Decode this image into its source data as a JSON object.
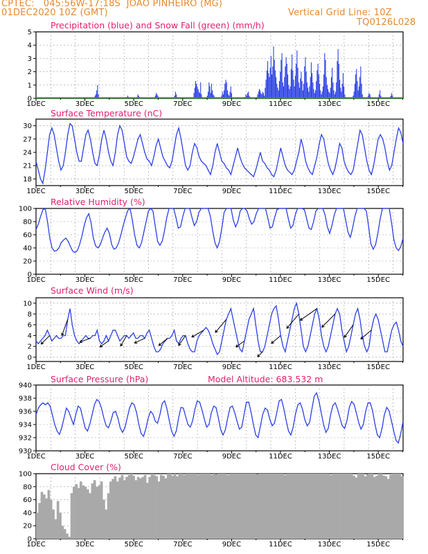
{
  "header": {
    "line1": "CPTEC:   045:56W-17:18S  JOAO PINHEIRO (MG)",
    "line2_left": "01DEC2020 10Z (GMT)",
    "line2_right": "Vertical Grid Line: 10Z",
    "code": "TQ0126L028"
  },
  "colors": {
    "accent": "#e58a2e",
    "title": "#e0206e",
    "line": "#2a3fe6",
    "snow": "#1aa51a",
    "cloud": "#a9a9a9"
  },
  "chart_data": [
    {
      "id": "precip",
      "type": "bar",
      "title": "Precipitation (blue) and Snow Fall (green) (mm/h)",
      "xlabels": [
        "1DEC",
        "3DEC",
        "5DEC",
        "7DEC",
        "9DEC",
        "11DEC",
        "13DEC",
        "15DEC"
      ],
      "yticks": [
        0,
        1,
        2,
        3,
        4,
        5
      ],
      "ylim": [
        0,
        5
      ],
      "snow_values": [
        0
      ],
      "values": [
        0,
        0,
        0,
        0,
        0,
        0,
        0,
        0,
        0,
        0,
        0,
        0,
        0,
        0,
        0,
        0,
        0,
        0,
        0,
        0,
        0,
        0,
        0,
        0,
        0,
        0,
        0,
        0,
        0,
        0,
        0,
        0,
        0,
        0,
        0,
        0,
        0,
        0,
        0,
        0,
        0,
        0,
        0,
        0,
        0,
        0,
        0,
        0,
        0,
        0,
        0,
        0,
        0,
        0,
        0,
        0,
        0,
        0,
        0,
        0,
        0,
        0,
        0,
        0,
        0,
        0,
        0,
        0,
        0,
        0,
        0.2,
        0.3,
        0.6,
        1.0,
        0.3,
        0,
        0,
        0,
        0,
        0,
        0,
        0,
        0,
        0,
        0,
        0,
        0,
        0,
        0,
        0,
        0,
        0,
        0,
        0,
        0,
        0,
        0,
        0,
        0,
        0,
        0,
        0,
        0,
        0,
        0,
        0,
        0,
        0,
        0.1,
        0.2,
        0.1,
        0,
        0,
        0,
        0,
        0,
        0,
        0,
        0,
        0,
        0.1,
        0.3,
        0.2,
        0.1,
        0,
        0,
        0,
        0,
        0,
        0,
        0,
        0,
        0,
        0,
        0,
        0,
        0,
        0,
        0,
        0,
        0,
        0,
        0.2,
        0.4,
        0.3,
        0.2,
        0,
        0,
        0,
        0,
        0,
        0,
        0,
        0,
        0,
        0,
        0,
        0,
        0,
        0,
        0,
        0,
        0,
        0,
        0,
        0.2,
        0.5,
        0.3,
        0.1,
        0,
        0,
        0,
        0,
        0,
        0,
        0,
        0,
        0,
        0,
        0,
        0,
        0,
        0,
        0,
        0,
        0,
        0,
        0,
        0.4,
        0.8,
        1.3,
        1.1,
        0.9,
        0.7,
        0.5,
        0.4,
        1.2,
        0.3,
        0,
        0,
        0,
        0,
        0,
        0,
        0.2,
        0.5,
        1.2,
        0.9,
        0.4,
        1.1,
        0.6,
        0.3,
        0.2,
        0,
        0,
        0,
        0,
        0,
        0,
        0,
        0,
        0.2,
        0.5,
        0.3,
        0.6,
        1.1,
        1.4,
        1.2,
        0.6,
        0.3,
        0.2,
        0.5,
        0.9,
        0.4,
        0,
        0,
        0,
        0,
        0,
        0,
        0,
        0,
        0,
        0,
        0,
        0,
        0,
        0,
        0,
        0.1,
        0.3,
        0.2,
        0.4,
        0.5,
        0.2,
        0.1,
        0,
        0,
        0,
        0,
        0,
        0,
        0,
        0.1,
        0.3,
        0.5,
        0.7,
        0.6,
        0.4,
        0.3,
        0.5,
        0.4,
        0.2,
        0.8,
        1.4,
        2.1,
        2.8,
        1.9,
        1.6,
        2.3,
        3.2,
        1.8,
        2.4,
        3.9,
        2.9,
        2.1,
        1.6,
        1.1,
        0.8,
        0.6,
        1.3,
        2.0,
        2.9,
        3.4,
        1.2,
        0.9,
        1.6,
        2.4,
        3.1,
        2.6,
        1.8,
        1.0,
        0.7,
        0.9,
        2.2,
        3.3,
        2.1,
        1.4,
        0.9,
        1.7,
        2.6,
        3.6,
        2.3,
        1.2,
        0.8,
        1.5,
        2.0,
        1.3,
        0.6,
        1.1,
        2.4,
        3.1,
        2.0,
        1.2,
        0.8,
        0.5,
        0.9,
        1.6,
        2.7,
        1.9,
        1.2,
        0.7,
        0.4,
        0.6,
        1.3,
        2.1,
        2.6,
        1.8,
        1.1,
        0.6,
        0.3,
        0.5,
        0.9,
        1.8,
        3.4,
        2.9,
        1.6,
        1.0,
        0.7,
        0.5,
        0.4,
        0.8,
        1.6,
        2.3,
        1.2,
        0.6,
        0.3,
        0.5,
        1.2,
        2.8,
        3.7,
        2.6,
        1.4,
        0.8,
        0.5,
        1.1,
        1.9,
        0.9,
        0.3,
        0.1,
        0,
        0,
        0,
        0,
        0,
        0,
        0,
        0,
        0.2,
        0.5,
        1.1,
        1.8,
        2.2,
        1.3,
        0.6,
        0.9,
        1.6,
        2.4,
        1.1,
        0.3,
        0,
        0,
        0,
        0,
        0,
        0,
        0.2,
        0.4,
        0.3,
        0.1,
        0,
        0,
        0,
        0,
        0,
        0,
        0,
        0,
        0,
        0.3,
        0.6,
        0.2,
        0,
        0,
        0,
        0,
        0,
        0,
        0,
        0,
        0,
        0,
        0.1,
        0.2,
        0.4,
        0.2,
        0,
        0,
        0,
        0,
        0,
        0,
        0,
        0,
        0,
        0,
        0,
        0
      ]
    },
    {
      "id": "temp",
      "type": "line",
      "title": "Surface Temperature (nC)",
      "xlabels": [
        "1DEC",
        "3DEC",
        "5DEC",
        "7DEC",
        "9DEC",
        "11DEC",
        "13DEC",
        "15DEC"
      ],
      "yticks": [
        18,
        21,
        24,
        27,
        30
      ],
      "ylim": [
        16.5,
        31.5
      ],
      "values": [
        22,
        20,
        18,
        17,
        20,
        24,
        28,
        29.5,
        28,
        25,
        22,
        20,
        21,
        24,
        28,
        30.5,
        30,
        27,
        24,
        22,
        22,
        25,
        28,
        29,
        27,
        24,
        21.5,
        21,
        23.5,
        27,
        29,
        27,
        24,
        22,
        21,
        24,
        28,
        30,
        29,
        26,
        23,
        22,
        21.5,
        23,
        25,
        27,
        28,
        26,
        24,
        22.5,
        22,
        21,
        23,
        25.5,
        27,
        25,
        23,
        22,
        21,
        20.5,
        22,
        25,
        28,
        29.5,
        27,
        24,
        21,
        20,
        21,
        24,
        26,
        25,
        23,
        22,
        21.5,
        21,
        20,
        19,
        21,
        24,
        26,
        24,
        22,
        21.5,
        20.5,
        20,
        19,
        21,
        23,
        25,
        23,
        21.5,
        20.5,
        20,
        19.5,
        19,
        18.5,
        20,
        22,
        24,
        22,
        21.5,
        20.5,
        20,
        19,
        18.5,
        20,
        22.5,
        25,
        23,
        21,
        20,
        19.5,
        19,
        20,
        22,
        24,
        27,
        25,
        22,
        20.5,
        19.5,
        19,
        21,
        23,
        26,
        28,
        27,
        24,
        21.5,
        20,
        19,
        20.5,
        23,
        26,
        25,
        22,
        20.5,
        19.5,
        19,
        20,
        23,
        26,
        29,
        28,
        25,
        22,
        20,
        19,
        21,
        24,
        27,
        28,
        27,
        25,
        22,
        20,
        21,
        24,
        27,
        29.5,
        28.5,
        26
      ]
    },
    {
      "id": "rh",
      "type": "line",
      "title": "Relative Humidity (%)",
      "xlabels": [
        "1DEC",
        "3DEC",
        "5DEC",
        "7DEC",
        "9DEC",
        "11DEC",
        "13DEC",
        "15DEC"
      ],
      "yticks": [
        0,
        20,
        40,
        60,
        80,
        100
      ],
      "ylim": [
        0,
        100
      ],
      "values": [
        68,
        76,
        88,
        98,
        100,
        80,
        55,
        40,
        35,
        36,
        40,
        48,
        52,
        55,
        50,
        42,
        35,
        33,
        36,
        45,
        58,
        74,
        86,
        92,
        78,
        55,
        43,
        40,
        45,
        55,
        64,
        70,
        62,
        45,
        38,
        40,
        48,
        60,
        74,
        86,
        97,
        100,
        82,
        60,
        44,
        40,
        48,
        64,
        80,
        96,
        100,
        96,
        72,
        50,
        44,
        50,
        66,
        86,
        100,
        100,
        100,
        86,
        70,
        72,
        88,
        100,
        100,
        100,
        86,
        74,
        80,
        94,
        100,
        100,
        100,
        100,
        88,
        66,
        48,
        40,
        50,
        70,
        94,
        100,
        100,
        100,
        82,
        72,
        80,
        96,
        100,
        100,
        96,
        84,
        76,
        80,
        92,
        100,
        100,
        100,
        100,
        86,
        70,
        72,
        86,
        98,
        100,
        100,
        100,
        100,
        84,
        70,
        74,
        90,
        100,
        100,
        100,
        98,
        84,
        70,
        68,
        80,
        96,
        100,
        100,
        100,
        90,
        72,
        62,
        74,
        90,
        100,
        100,
        100,
        100,
        82,
        64,
        56,
        70,
        88,
        100,
        100,
        100,
        100,
        96,
        72,
        46,
        38,
        45,
        62,
        84,
        100,
        100,
        100,
        100,
        78,
        52,
        40,
        36,
        42,
        55
      ]
    },
    {
      "id": "wind",
      "type": "line",
      "title": "Surface Wind (m/s)",
      "xlabels": [
        "1DEC",
        "3DEC",
        "5DEC",
        "7DEC",
        "9DEC",
        "11DEC",
        "13DEC",
        "15DEC"
      ],
      "yticks": [
        0,
        2,
        4,
        6,
        8,
        10
      ],
      "ylim": [
        -0.8,
        11
      ],
      "values": [
        3,
        2.5,
        3,
        3.5,
        4,
        5,
        4,
        3,
        3.5,
        4,
        3.5,
        3.5,
        4,
        4,
        7,
        9,
        6,
        4,
        3,
        2.5,
        3,
        3.5,
        4,
        3.5,
        3.5,
        4,
        4,
        5,
        3,
        2.5,
        3,
        4,
        3,
        4,
        5,
        5,
        4,
        3,
        3.5,
        4,
        4,
        3.5,
        4,
        4.5,
        3.5,
        3.5,
        4,
        4,
        3.5,
        4.5,
        5,
        3.5,
        2,
        1,
        1,
        1.5,
        2.5,
        3,
        3.5,
        3.5,
        4,
        5,
        3,
        2.5,
        3.5,
        4,
        4,
        2.5,
        1.5,
        1,
        1,
        3,
        4,
        4.5,
        5,
        5.5,
        5,
        4,
        2.5,
        1.5,
        0.5,
        1,
        3,
        5,
        7,
        8,
        9,
        7,
        5,
        3,
        1.5,
        1,
        3,
        5,
        7,
        8,
        9,
        6,
        3,
        1,
        1,
        2,
        4,
        6,
        8,
        9,
        9.5,
        7,
        4,
        2,
        1,
        3,
        5,
        7,
        9,
        10,
        8,
        5,
        2,
        1,
        2,
        4,
        6,
        8,
        9,
        7,
        4,
        2,
        1,
        2,
        4,
        6,
        8,
        9,
        8,
        5,
        3,
        1,
        2,
        4,
        6,
        8,
        9,
        7,
        4,
        2,
        1,
        2,
        5,
        7,
        8,
        7,
        5,
        3,
        1,
        1,
        3,
        5,
        6,
        6.5,
        5,
        3,
        2
      ]
    },
    {
      "id": "pressure",
      "type": "line",
      "title": "Surface Pressure (hPa)",
      "subtitle": "Model Altitude: 683.532 m",
      "xlabels": [
        "1DEC",
        "3DEC",
        "5DEC",
        "7DEC",
        "9DEC",
        "11DEC",
        "13DEC",
        "15DEC"
      ],
      "yticks": [
        930,
        932,
        934,
        936,
        938,
        940
      ],
      "ylim": [
        930,
        940
      ],
      "values": [
        935.5,
        936.5,
        937,
        937.3,
        937,
        937.3,
        936.8,
        935.5,
        934,
        933,
        932.5,
        933.5,
        935,
        936.5,
        936,
        935,
        934,
        935.5,
        936.8,
        936.5,
        935,
        933.5,
        933,
        934,
        935.5,
        937,
        937.8,
        937.5,
        936.5,
        935,
        933.8,
        933.5,
        934.5,
        935.8,
        936,
        935,
        933.5,
        932.8,
        933.5,
        935,
        936.5,
        937.3,
        937,
        935.8,
        934,
        932.6,
        932.2,
        933.4,
        935,
        936,
        935.6,
        934.5,
        934.2,
        935.5,
        937.2,
        937.6,
        936.4,
        934.6,
        933,
        932.2,
        933,
        935,
        936.6,
        936.5,
        935.2,
        934,
        933.6,
        934.6,
        936.4,
        937.6,
        937.4,
        936.2,
        934.8,
        933.6,
        934,
        935.8,
        936.8,
        936.6,
        935,
        933.2,
        932.4,
        933.2,
        935,
        936.6,
        936.8,
        935.8,
        934.5,
        933.3,
        933.6,
        935.5,
        937.4,
        937.4,
        935.8,
        934,
        932.4,
        932,
        933.8,
        935.6,
        936.5,
        936.2,
        934.8,
        933.8,
        934.2,
        935.8,
        937.6,
        937.8,
        936.4,
        934.6,
        933,
        932.4,
        933.6,
        935.6,
        937,
        937.3,
        936.3,
        934.7,
        933.8,
        934.3,
        936.3,
        938.3,
        938.8,
        937.6,
        935.8,
        934,
        932.8,
        933.4,
        935.5,
        936.9,
        937.3,
        936.3,
        935,
        933.8,
        933.4,
        934.6,
        936.6,
        937.5,
        937.1,
        935.8,
        934.3,
        933.3,
        934,
        936,
        937.3,
        937.3,
        936,
        934,
        932.4,
        932,
        933.4,
        935.5,
        936.6,
        936.1,
        934.6,
        933,
        931.6,
        931.2,
        932.6,
        934.5
      ]
    },
    {
      "id": "cloud",
      "type": "area",
      "title": "Cloud Cover (%)",
      "xlabels": [
        "1DEC",
        "3DEC",
        "5DEC",
        "7DEC",
        "9DEC",
        "11DEC",
        "13DEC",
        "15DEC"
      ],
      "yticks": [
        0,
        20,
        40,
        60,
        80,
        100
      ],
      "ylim": [
        0,
        100
      ],
      "values": [
        40,
        55,
        72,
        68,
        62,
        75,
        60,
        45,
        30,
        58,
        40,
        20,
        15,
        8,
        3,
        70,
        80,
        84,
        78,
        88,
        82,
        80,
        76,
        70,
        85,
        90,
        80,
        82,
        88,
        60,
        45,
        70,
        88,
        92,
        96,
        88,
        94,
        98,
        90,
        95,
        98,
        100,
        97,
        90,
        95,
        93,
        95,
        98,
        86,
        95,
        100,
        98,
        96,
        88,
        98,
        97,
        93,
        100,
        100,
        97,
        100,
        96,
        100,
        100,
        98,
        100,
        100,
        100,
        100,
        100,
        98,
        100,
        100,
        100,
        100,
        100,
        98,
        100,
        99,
        100,
        100,
        100,
        100,
        98,
        100,
        100,
        100,
        100,
        100,
        100,
        100,
        100,
        100,
        100,
        100,
        100,
        99,
        100,
        100,
        100,
        100,
        100,
        100,
        100,
        100,
        100,
        100,
        100,
        98,
        100,
        100,
        100,
        100,
        100,
        100,
        100,
        100,
        100,
        100,
        100,
        100,
        100,
        100,
        100,
        100,
        100,
        100,
        100,
        98,
        100,
        100,
        100,
        100,
        100,
        100,
        100,
        100,
        100,
        97,
        94,
        100,
        100,
        100,
        96,
        99,
        100,
        100,
        95,
        97,
        100,
        100,
        97,
        96,
        92,
        98,
        100,
        100,
        100,
        100,
        96
      ]
    }
  ]
}
